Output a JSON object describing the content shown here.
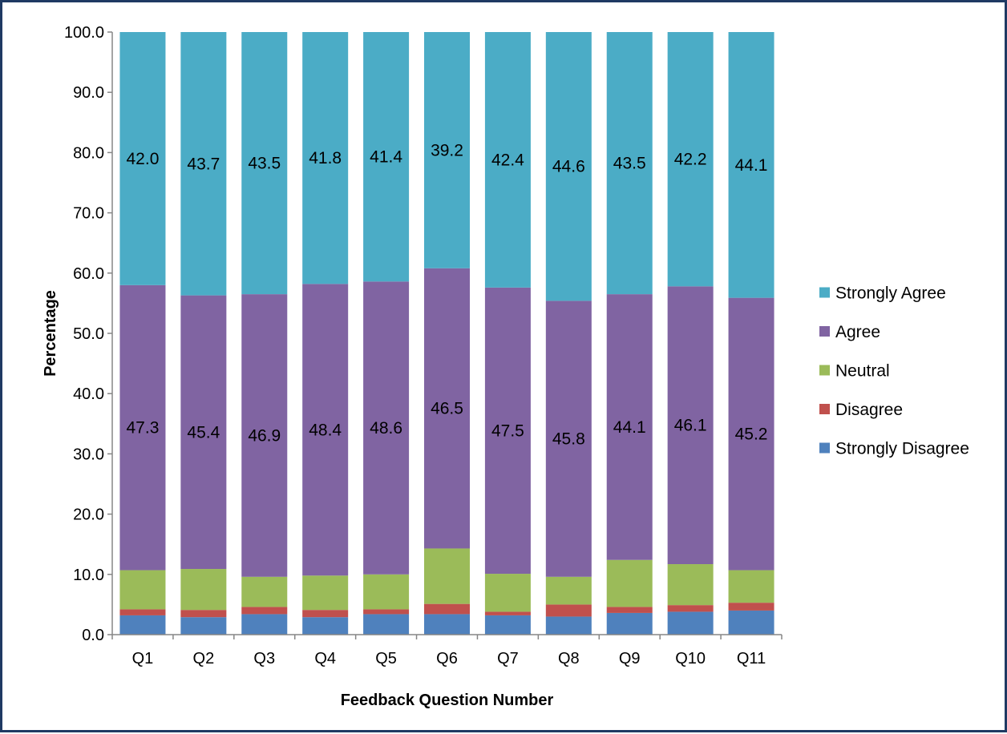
{
  "chart_data": {
    "type": "bar",
    "stacked": true,
    "categories": [
      "Q1",
      "Q2",
      "Q3",
      "Q4",
      "Q5",
      "Q6",
      "Q7",
      "Q8",
      "Q9",
      "Q10",
      "Q11"
    ],
    "series": [
      {
        "name": "Strongly Disagree",
        "color": "#4f81bd",
        "values": [
          3.2,
          2.9,
          3.4,
          2.9,
          3.4,
          3.4,
          3.2,
          3.0,
          3.6,
          3.8,
          4.0
        ]
      },
      {
        "name": "Disagree",
        "color": "#c0504d",
        "values": [
          1.0,
          1.2,
          1.2,
          1.2,
          0.8,
          1.7,
          0.6,
          2.0,
          1.0,
          1.1,
          1.3
        ]
      },
      {
        "name": "Neutral",
        "color": "#9bbb59",
        "values": [
          6.5,
          6.8,
          5.0,
          5.7,
          5.8,
          9.2,
          6.3,
          4.6,
          7.8,
          6.8,
          5.4
        ]
      },
      {
        "name": "Agree",
        "color": "#8064a2",
        "values": [
          47.3,
          45.4,
          46.9,
          48.4,
          48.6,
          46.5,
          47.5,
          45.8,
          44.1,
          46.1,
          45.2
        ]
      },
      {
        "name": "Strongly Agree",
        "color": "#4bacc6",
        "values": [
          42.0,
          43.7,
          43.5,
          41.8,
          41.4,
          39.2,
          42.4,
          44.6,
          43.5,
          42.2,
          44.1
        ]
      }
    ],
    "data_labels": {
      "Agree": [
        "47.3",
        "45.4",
        "46.9",
        "48.4",
        "48.6",
        "46.5",
        "47.5",
        "45.8",
        "44.1",
        "46.1",
        "45.2"
      ],
      "Strongly Agree": [
        "42.0",
        "43.7",
        "43.5",
        "41.8",
        "41.4",
        "39.2",
        "42.4",
        "44.6",
        "43.5",
        "42.2",
        "44.1"
      ]
    },
    "y_ticks": [
      "0.0",
      "10.0",
      "20.0",
      "30.0",
      "40.0",
      "50.0",
      "60.0",
      "70.0",
      "80.0",
      "90.0",
      "100.0"
    ],
    "ylim": [
      0,
      100
    ],
    "xlabel": "Feedback Question Number",
    "ylabel": "Percentage",
    "grid": false,
    "legend": {
      "placement": "right",
      "order": [
        "Strongly Agree",
        "Agree",
        "Neutral",
        "Disagree",
        "Strongly Disagree"
      ]
    }
  }
}
